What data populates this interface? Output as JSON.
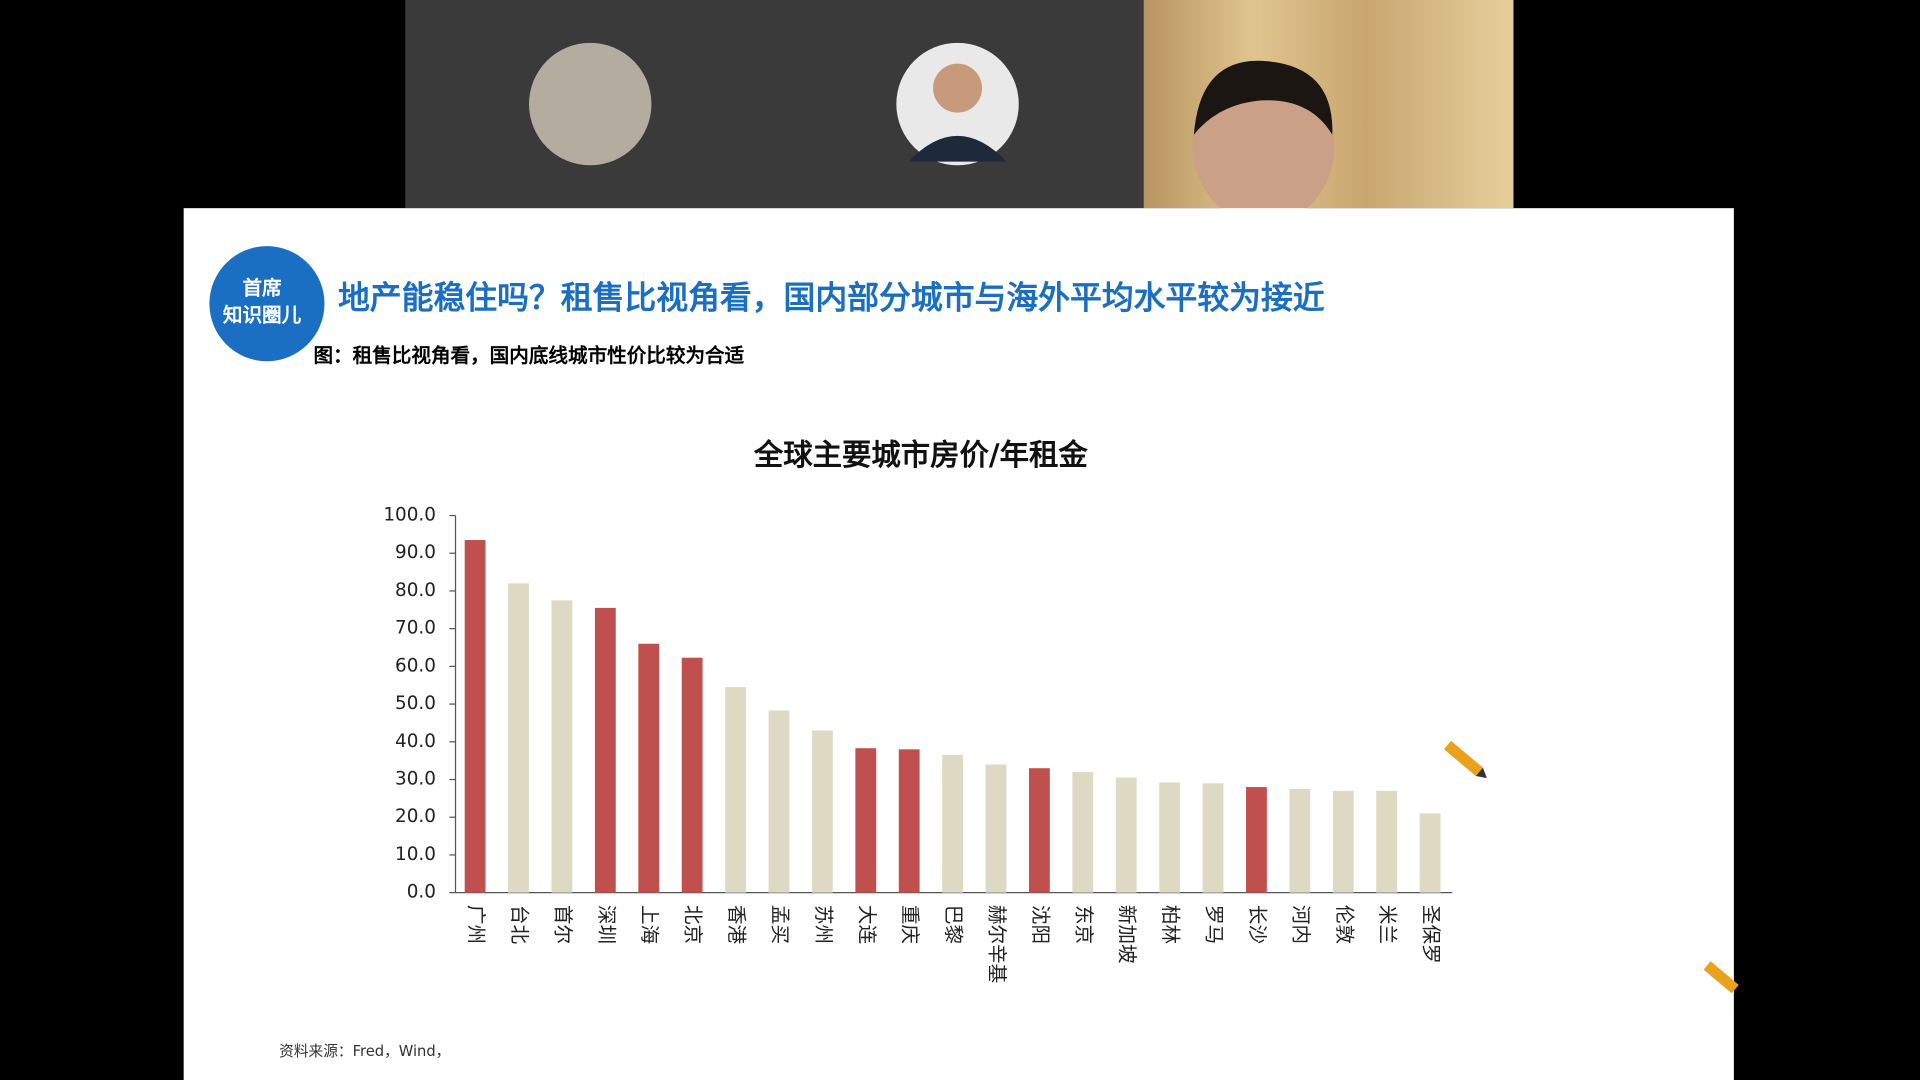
{
  "slide": {
    "logo": [
      "首席",
      "知识圈儿"
    ],
    "title": "地产能稳住吗？租售比视角看，国内部分城市与海外平均水平较为接近",
    "subtitle": "图：租售比视角看，国内底线城市性价比较为合适",
    "source": "资料来源：Fred，Wind，"
  },
  "chart_data": {
    "type": "bar",
    "title": "全球主要城市房价/年租金",
    "categories": [
      "广州",
      "台北",
      "首尔",
      "深圳",
      "上海",
      "北京",
      "香港",
      "孟买",
      "苏州",
      "大连",
      "重庆",
      "巴黎",
      "赫尔辛基",
      "沈阳",
      "东京",
      "新加坡",
      "柏林",
      "罗马",
      "长沙",
      "河内",
      "伦敦",
      "米兰",
      "圣保罗"
    ],
    "values": [
      93.5,
      82,
      77.5,
      75.5,
      66,
      62.3,
      54.5,
      48.3,
      43,
      38.3,
      38,
      36.5,
      34,
      33,
      32,
      30.5,
      29.2,
      29,
      28,
      27.5,
      27,
      27,
      21
    ],
    "colors": [
      "#c0504d",
      "#ddd9c3",
      "#ddd9c3",
      "#c0504d",
      "#c0504d",
      "#c0504d",
      "#ddd9c3",
      "#ddd9c3",
      "#ddd9c3",
      "#c0504d",
      "#c0504d",
      "#ddd9c3",
      "#ddd9c3",
      "#c0504d",
      "#ddd9c3",
      "#ddd9c3",
      "#ddd9c3",
      "#ddd9c3",
      "#c0504d",
      "#ddd9c3",
      "#ddd9c3",
      "#ddd9c3",
      "#ddd9c3"
    ],
    "ylim": [
      0,
      100
    ],
    "yticks": [
      {
        "value": 0,
        "label": "0.0"
      },
      {
        "value": 10,
        "label": "10.0"
      },
      {
        "value": 20,
        "label": "20.0"
      },
      {
        "value": 30,
        "label": "30.0"
      },
      {
        "value": 40,
        "label": "40.0"
      },
      {
        "value": 50,
        "label": "50.0"
      },
      {
        "value": 60,
        "label": "60.0"
      },
      {
        "value": 70,
        "label": "70.0"
      },
      {
        "value": 80,
        "label": "80.0"
      },
      {
        "value": 90,
        "label": "90.0"
      },
      {
        "value": 100,
        "label": "100.0"
      }
    ]
  }
}
